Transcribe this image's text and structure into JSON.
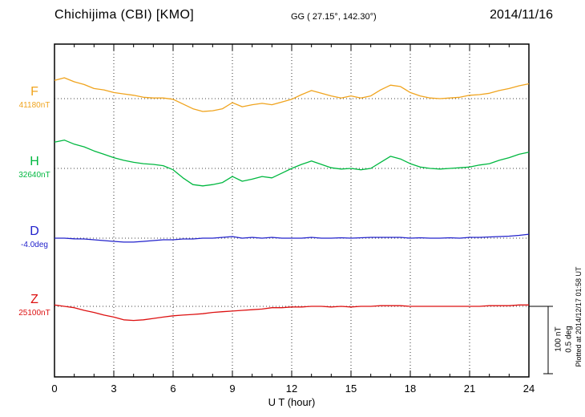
{
  "header": {
    "station": "Chichijima (CBI)  [KMO]",
    "coordinates": "GG ( 27.15°, 142.30°)",
    "date": "2014/11/16"
  },
  "chart_data": {
    "type": "line",
    "title": "Chichijima (CBI) [KMO] magnetogram 2014/11/16",
    "xlabel": "U T (hour)",
    "x_ticks": [
      0,
      3,
      6,
      9,
      12,
      15,
      18,
      21,
      24
    ],
    "x_range": [
      0,
      24
    ],
    "x_step_hours": 0.5,
    "grid": "dotted vertical at 3h intervals, dotted horizontal at each series baseline",
    "scale_bar": {
      "label_nt": "100 nT",
      "label_deg": "0.5 deg",
      "nt_per_bar": 100,
      "deg_per_bar": 0.5
    },
    "plotted_at": "Plotted at 2014/12/17 01:58 UT",
    "series": [
      {
        "name": "F",
        "value_label": "41180nT",
        "baseline": 41180,
        "unit": "nT",
        "color": "#f0a41e",
        "offsets": [
          27,
          31,
          25,
          21,
          15,
          13,
          9,
          7,
          5,
          2,
          1,
          1,
          -1,
          -8,
          -15,
          -19,
          -18,
          -15,
          -6,
          -12,
          -9,
          -7,
          -9,
          -5,
          -1,
          6,
          12,
          8,
          4,
          1,
          4,
          1,
          4,
          13,
          20,
          18,
          9,
          4,
          1,
          0,
          1,
          2,
          5,
          6,
          8,
          12,
          15,
          19,
          22
        ]
      },
      {
        "name": "H",
        "value_label": "32640nT",
        "baseline": 32640,
        "unit": "nT",
        "color": "#00b840",
        "offsets": [
          39,
          42,
          36,
          32,
          26,
          21,
          16,
          12,
          9,
          7,
          6,
          4,
          -2,
          -14,
          -24,
          -26,
          -24,
          -21,
          -12,
          -19,
          -16,
          -12,
          -14,
          -7,
          0,
          6,
          11,
          6,
          1,
          -1,
          0,
          -2,
          0,
          9,
          18,
          14,
          7,
          2,
          0,
          -1,
          0,
          1,
          2,
          5,
          7,
          12,
          16,
          21,
          24
        ]
      },
      {
        "name": "D",
        "value_label": "-4.0deg",
        "baseline": -4.0,
        "unit": "deg",
        "color": "#2222cc",
        "offsets": [
          0,
          0,
          -0.005,
          -0.006,
          -0.012,
          -0.018,
          -0.024,
          -0.029,
          -0.029,
          -0.024,
          -0.018,
          -0.012,
          -0.012,
          -0.006,
          -0.006,
          0,
          0,
          0.006,
          0.012,
          0,
          0.006,
          0,
          0.006,
          0,
          0,
          0,
          0.006,
          0,
          0,
          0.003,
          0,
          0.003,
          0.006,
          0.006,
          0.006,
          0.006,
          0,
          0.003,
          0,
          0,
          0.003,
          0,
          0.006,
          0.006,
          0.009,
          0.012,
          0.015,
          0.021,
          0.029
        ]
      },
      {
        "name": "Z",
        "value_label": "25100nT",
        "baseline": 25100,
        "unit": "nT",
        "color": "#dd1111",
        "offsets": [
          2,
          0,
          -2,
          -6,
          -9,
          -13,
          -16,
          -20,
          -21,
          -20,
          -18,
          -16,
          -14,
          -13,
          -12,
          -11,
          -9,
          -8,
          -7,
          -6,
          -5,
          -4,
          -2,
          -2,
          -1,
          -1,
          0,
          0,
          -1,
          0,
          -1,
          0,
          0,
          1,
          1,
          1,
          0,
          0,
          0,
          0,
          0,
          0,
          0,
          0,
          1,
          1,
          1,
          2,
          2
        ]
      }
    ]
  }
}
